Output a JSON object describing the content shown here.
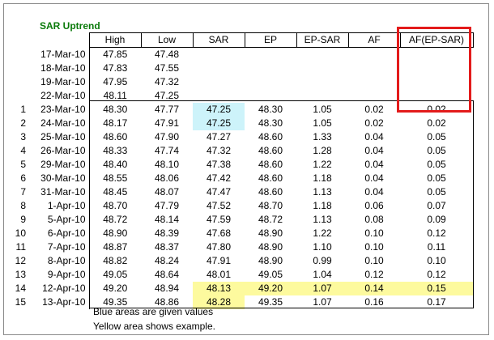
{
  "title": "SAR Uptrend",
  "headers": [
    "High",
    "Low",
    "SAR",
    "EP",
    "EP-SAR",
    "AF",
    "AF(EP-SAR)"
  ],
  "rows": [
    {
      "idx": "",
      "date": "17-Mar-10",
      "high": "47.85",
      "low": "47.48",
      "sar": "",
      "ep": "",
      "ep_sar": "",
      "af": "",
      "af_ep_sar": ""
    },
    {
      "idx": "",
      "date": "18-Mar-10",
      "high": "47.83",
      "low": "47.55",
      "sar": "",
      "ep": "",
      "ep_sar": "",
      "af": "",
      "af_ep_sar": ""
    },
    {
      "idx": "",
      "date": "19-Mar-10",
      "high": "47.95",
      "low": "47.32",
      "sar": "",
      "ep": "",
      "ep_sar": "",
      "af": "",
      "af_ep_sar": ""
    },
    {
      "idx": "",
      "date": "22-Mar-10",
      "high": "48.11",
      "low": "47.25",
      "sar": "",
      "ep": "",
      "ep_sar": "",
      "af": "",
      "af_ep_sar": ""
    },
    {
      "idx": "1",
      "date": "23-Mar-10",
      "high": "48.30",
      "low": "47.77",
      "sar": "47.25",
      "ep": "48.30",
      "ep_sar": "1.05",
      "af": "0.02",
      "af_ep_sar": "0.02"
    },
    {
      "idx": "2",
      "date": "24-Mar-10",
      "high": "48.17",
      "low": "47.91",
      "sar": "47.25",
      "ep": "48.30",
      "ep_sar": "1.05",
      "af": "0.02",
      "af_ep_sar": "0.02"
    },
    {
      "idx": "3",
      "date": "25-Mar-10",
      "high": "48.60",
      "low": "47.90",
      "sar": "47.27",
      "ep": "48.60",
      "ep_sar": "1.33",
      "af": "0.04",
      "af_ep_sar": "0.05"
    },
    {
      "idx": "4",
      "date": "26-Mar-10",
      "high": "48.33",
      "low": "47.74",
      "sar": "47.32",
      "ep": "48.60",
      "ep_sar": "1.28",
      "af": "0.04",
      "af_ep_sar": "0.05"
    },
    {
      "idx": "5",
      "date": "29-Mar-10",
      "high": "48.40",
      "low": "48.10",
      "sar": "47.38",
      "ep": "48.60",
      "ep_sar": "1.22",
      "af": "0.04",
      "af_ep_sar": "0.05"
    },
    {
      "idx": "6",
      "date": "30-Mar-10",
      "high": "48.55",
      "low": "48.06",
      "sar": "47.42",
      "ep": "48.60",
      "ep_sar": "1.18",
      "af": "0.04",
      "af_ep_sar": "0.05"
    },
    {
      "idx": "7",
      "date": "31-Mar-10",
      "high": "48.45",
      "low": "48.07",
      "sar": "47.47",
      "ep": "48.60",
      "ep_sar": "1.13",
      "af": "0.04",
      "af_ep_sar": "0.05"
    },
    {
      "idx": "8",
      "date": "1-Apr-10",
      "high": "48.70",
      "low": "47.79",
      "sar": "47.52",
      "ep": "48.70",
      "ep_sar": "1.18",
      "af": "0.06",
      "af_ep_sar": "0.07"
    },
    {
      "idx": "9",
      "date": "5-Apr-10",
      "high": "48.72",
      "low": "48.14",
      "sar": "47.59",
      "ep": "48.72",
      "ep_sar": "1.13",
      "af": "0.08",
      "af_ep_sar": "0.09"
    },
    {
      "idx": "10",
      "date": "6-Apr-10",
      "high": "48.90",
      "low": "48.39",
      "sar": "47.68",
      "ep": "48.90",
      "ep_sar": "1.22",
      "af": "0.10",
      "af_ep_sar": "0.12"
    },
    {
      "idx": "11",
      "date": "7-Apr-10",
      "high": "48.87",
      "low": "48.37",
      "sar": "47.80",
      "ep": "48.90",
      "ep_sar": "1.10",
      "af": "0.10",
      "af_ep_sar": "0.11"
    },
    {
      "idx": "12",
      "date": "8-Apr-10",
      "high": "48.82",
      "low": "48.24",
      "sar": "47.91",
      "ep": "48.90",
      "ep_sar": "0.99",
      "af": "0.10",
      "af_ep_sar": "0.10"
    },
    {
      "idx": "13",
      "date": "9-Apr-10",
      "high": "49.05",
      "low": "48.64",
      "sar": "48.01",
      "ep": "49.05",
      "ep_sar": "1.04",
      "af": "0.12",
      "af_ep_sar": "0.12"
    },
    {
      "idx": "14",
      "date": "12-Apr-10",
      "high": "49.20",
      "low": "48.94",
      "sar": "48.13",
      "ep": "49.20",
      "ep_sar": "1.07",
      "af": "0.14",
      "af_ep_sar": "0.15"
    },
    {
      "idx": "15",
      "date": "13-Apr-10",
      "high": "49.35",
      "low": "48.86",
      "sar": "48.28",
      "ep": "49.35",
      "ep_sar": "1.07",
      "af": "0.16",
      "af_ep_sar": "0.17"
    }
  ],
  "highlights": {
    "blue": [
      [
        4,
        "sar"
      ],
      [
        5,
        "sar"
      ]
    ],
    "yellow": [
      [
        17,
        "sar"
      ],
      [
        17,
        "ep"
      ],
      [
        17,
        "ep_sar"
      ],
      [
        17,
        "af"
      ],
      [
        17,
        "af_ep_sar"
      ],
      [
        18,
        "sar"
      ]
    ]
  },
  "colors": {
    "blue": "#cdf3fa",
    "yellow": "#fdfa9e",
    "title_green": "#0a7a0a",
    "callout_red": "#e31b1b"
  },
  "notes": [
    "Blue areas are given values",
    "Yellow area shows example."
  ]
}
